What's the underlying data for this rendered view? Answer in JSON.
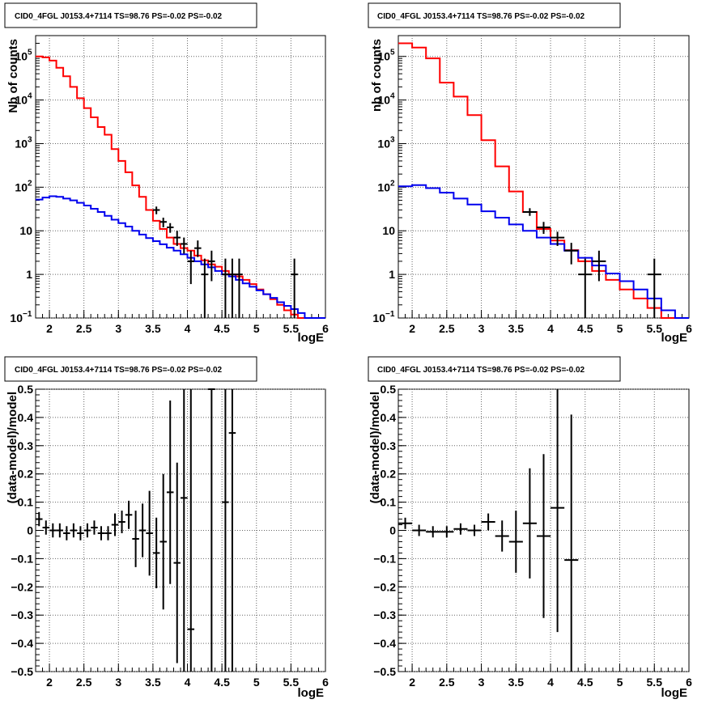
{
  "chart_data": [
    {
      "type": "line",
      "title": "CID0_4FGL J0153.4+7114 TS=98.76 PS=-0.02 PS=-0.02",
      "xlabel": "logE",
      "ylabel": "Nb of counts",
      "xlim": [
        1.8,
        6.0
      ],
      "ylim": [
        0.1,
        300000
      ],
      "yscale": "log",
      "grid": true,
      "x_ticks": [
        "2",
        "2.5",
        "3",
        "3.5",
        "4",
        "4.5",
        "5",
        "5.5",
        "6"
      ],
      "y_ticks": [
        {
          "v": 0.1,
          "b": "10",
          "e": "−1"
        },
        {
          "v": 1,
          "b": "1",
          "e": ""
        },
        {
          "v": 10,
          "b": "10",
          "e": ""
        },
        {
          "v": 100,
          "b": "10",
          "e": "2"
        },
        {
          "v": 1000,
          "b": "10",
          "e": "3"
        },
        {
          "v": 10000,
          "b": "10",
          "e": "4"
        },
        {
          "v": 100000,
          "b": "10",
          "e": "5"
        }
      ],
      "series": [
        {
          "color": "#ff0000",
          "bin_width": 0.1,
          "x": [
            1.8,
            1.9,
            2.0,
            2.1,
            2.2,
            2.3,
            2.4,
            2.5,
            2.6,
            2.7,
            2.8,
            2.9,
            3.0,
            3.1,
            3.2,
            3.3,
            3.4,
            3.5,
            3.6,
            3.7,
            3.8,
            3.9,
            4.0,
            4.1,
            4.2,
            4.3,
            4.4,
            4.5,
            4.6,
            4.7,
            4.8,
            4.9,
            5.0,
            5.1,
            5.2,
            5.3,
            5.4,
            5.5,
            5.6,
            5.7,
            5.8,
            5.9
          ],
          "y": [
            100000,
            95000,
            80000,
            55000,
            35000,
            20000,
            11000,
            6500,
            4000,
            2400,
            1600,
            750,
            400,
            220,
            110,
            60,
            30,
            17,
            11,
            7,
            5,
            4,
            3.5,
            2.7,
            2.1,
            1.7,
            1.5,
            1.2,
            1.0,
            0.9,
            0.75,
            0.6,
            0.45,
            0.35,
            0.27,
            0.2,
            0.15,
            0.12,
            0.1,
            0.1,
            0.1,
            0.1
          ]
        },
        {
          "color": "#0000ee",
          "bin_width": 0.1,
          "x": [
            1.8,
            1.9,
            2.0,
            2.1,
            2.2,
            2.3,
            2.4,
            2.5,
            2.6,
            2.7,
            2.8,
            2.9,
            3.0,
            3.1,
            3.2,
            3.3,
            3.4,
            3.5,
            3.6,
            3.7,
            3.8,
            3.9,
            4.0,
            4.1,
            4.2,
            4.3,
            4.4,
            4.5,
            4.6,
            4.7,
            4.8,
            4.9,
            5.0,
            5.1,
            5.2,
            5.3,
            5.4,
            5.5,
            5.6,
            5.7,
            5.8,
            5.9
          ],
          "y": [
            52,
            58,
            62,
            60,
            55,
            50,
            44,
            38,
            32,
            27,
            22,
            18,
            15,
            12.5,
            10,
            8.2,
            6.8,
            5.8,
            4.9,
            4.1,
            3.5,
            2.9,
            2.4,
            2.0,
            1.7,
            1.45,
            1.2,
            1.0,
            0.9,
            0.75,
            0.62,
            0.52,
            0.43,
            0.35,
            0.29,
            0.23,
            0.19,
            0.16,
            0.13,
            0.1,
            0.1,
            0.1
          ]
        }
      ],
      "points": [
        {
          "x": 3.55,
          "y": 30,
          "xerr": 0.05,
          "ylo": 24,
          "yhi": 36
        },
        {
          "x": 3.65,
          "y": 16,
          "xerr": 0.05,
          "ylo": 12,
          "yhi": 20
        },
        {
          "x": 3.75,
          "y": 12,
          "xerr": 0.05,
          "ylo": 9,
          "yhi": 15
        },
        {
          "x": 3.85,
          "y": 7,
          "xerr": 0.05,
          "ylo": 4.5,
          "yhi": 10
        },
        {
          "x": 3.95,
          "y": 5,
          "xerr": 0.05,
          "ylo": 3,
          "yhi": 7
        },
        {
          "x": 4.05,
          "y": 2,
          "xerr": 0.05,
          "ylo": 0.6,
          "yhi": 3.5
        },
        {
          "x": 4.15,
          "y": 4,
          "xerr": 0.05,
          "ylo": 2.5,
          "yhi": 6
        },
        {
          "x": 4.25,
          "y": 1,
          "xerr": 0.05,
          "ylo": 0.1,
          "yhi": 2.3
        },
        {
          "x": 4.35,
          "y": 2,
          "xerr": 0.05,
          "ylo": 0.7,
          "yhi": 3.5
        },
        {
          "x": 4.55,
          "y": 1,
          "xerr": 0.05,
          "ylo": 0.1,
          "yhi": 2.3
        },
        {
          "x": 4.65,
          "y": 1,
          "xerr": 0.05,
          "ylo": 0.1,
          "yhi": 2.3
        },
        {
          "x": 4.75,
          "y": 1,
          "xerr": 0.05,
          "ylo": 0.1,
          "yhi": 2.3
        },
        {
          "x": 5.55,
          "y": 1,
          "xerr": 0.05,
          "ylo": 0.1,
          "yhi": 2.3
        }
      ]
    },
    {
      "type": "line",
      "title": "CID0_4FGL J0153.4+7114 TS=98.76 PS=-0.02 PS=-0.02",
      "xlabel": "logE",
      "ylabel": "nb of counts",
      "xlim": [
        1.8,
        6.0
      ],
      "ylim": [
        0.1,
        300000
      ],
      "yscale": "log",
      "grid": true,
      "x_ticks": [
        "2",
        "2.5",
        "3",
        "3.5",
        "4",
        "4.5",
        "5",
        "5.5",
        "6"
      ],
      "y_ticks": [
        {
          "v": 0.1,
          "b": "10",
          "e": "−1"
        },
        {
          "v": 1,
          "b": "1",
          "e": ""
        },
        {
          "v": 10,
          "b": "10",
          "e": ""
        },
        {
          "v": 100,
          "b": "10",
          "e": "2"
        },
        {
          "v": 1000,
          "b": "10",
          "e": "3"
        },
        {
          "v": 10000,
          "b": "10",
          "e": "4"
        },
        {
          "v": 100000,
          "b": "10",
          "e": "5"
        }
      ],
      "series": [
        {
          "color": "#ff0000",
          "bin_width": 0.2,
          "x": [
            1.8,
            2.0,
            2.2,
            2.4,
            2.6,
            2.8,
            3.0,
            3.2,
            3.4,
            3.6,
            3.8,
            4.0,
            4.2,
            4.4,
            4.6,
            4.8,
            5.0,
            5.2,
            5.4,
            5.6,
            5.8
          ],
          "y": [
            200000,
            160000,
            90000,
            25000,
            12000,
            4500,
            1200,
            300,
            80,
            27,
            11,
            6,
            3.6,
            2.0,
            1.2,
            0.75,
            0.45,
            0.28,
            0.17,
            0.1,
            0.1
          ]
        },
        {
          "color": "#0000ee",
          "bin_width": 0.2,
          "x": [
            1.8,
            2.0,
            2.2,
            2.4,
            2.6,
            2.8,
            3.0,
            3.2,
            3.4,
            3.6,
            3.8,
            4.0,
            4.2,
            4.4,
            4.6,
            4.8,
            5.0,
            5.2,
            5.4,
            5.6,
            5.8
          ],
          "y": [
            105,
            112,
            95,
            75,
            55,
            40,
            28,
            20,
            14,
            10,
            7,
            5,
            3.5,
            2.4,
            1.6,
            1.05,
            0.7,
            0.45,
            0.28,
            0.15,
            0.1
          ]
        }
      ],
      "points": [
        {
          "x": 3.7,
          "y": 27,
          "xerr": 0.1,
          "ylo": 22,
          "yhi": 33
        },
        {
          "x": 3.9,
          "y": 12,
          "xerr": 0.1,
          "ylo": 8.5,
          "yhi": 16
        },
        {
          "x": 4.1,
          "y": 7,
          "xerr": 0.1,
          "ylo": 4.5,
          "yhi": 9.5
        },
        {
          "x": 4.3,
          "y": 3.5,
          "xerr": 0.1,
          "ylo": 1.7,
          "yhi": 5.3
        },
        {
          "x": 4.5,
          "y": 1,
          "xerr": 0.1,
          "ylo": 0.1,
          "yhi": 2.3
        },
        {
          "x": 4.7,
          "y": 2,
          "xerr": 0.1,
          "ylo": 0.7,
          "yhi": 3.5
        },
        {
          "x": 5.5,
          "y": 1,
          "xerr": 0.1,
          "ylo": 0.1,
          "yhi": 2.3
        }
      ]
    },
    {
      "type": "scatter",
      "title": "CID0_4FGL J0153.4+7114 TS=98.76 PS=-0.02 PS=-0.02",
      "xlabel": "logE",
      "ylabel": "(data-model)/model",
      "xlim": [
        1.8,
        6.0
      ],
      "ylim": [
        -0.5,
        0.5
      ],
      "grid": true,
      "x_ticks": [
        "2",
        "2.5",
        "3",
        "3.5",
        "4",
        "4.5",
        "5",
        "5.5",
        "6"
      ],
      "y_ticks": [
        "0.5",
        "0.4",
        "0.3",
        "0.2",
        "0.1",
        "0",
        "−0.1",
        "−0.2",
        "−0.3",
        "−0.4",
        "−0.5"
      ],
      "points": [
        {
          "x": 1.85,
          "y": 0.04,
          "xerr": 0.05,
          "yerr": 0.025
        },
        {
          "x": 1.95,
          "y": 0.01,
          "xerr": 0.05,
          "yerr": 0.025
        },
        {
          "x": 2.05,
          "y": 0.0,
          "xerr": 0.05,
          "yerr": 0.025
        },
        {
          "x": 2.15,
          "y": 0.0,
          "xerr": 0.05,
          "yerr": 0.025
        },
        {
          "x": 2.25,
          "y": -0.01,
          "xerr": 0.05,
          "yerr": 0.025
        },
        {
          "x": 2.35,
          "y": 0.0,
          "xerr": 0.05,
          "yerr": 0.025
        },
        {
          "x": 2.45,
          "y": -0.01,
          "xerr": 0.05,
          "yerr": 0.025
        },
        {
          "x": 2.55,
          "y": 0.0,
          "xerr": 0.05,
          "yerr": 0.025
        },
        {
          "x": 2.65,
          "y": 0.01,
          "xerr": 0.05,
          "yerr": 0.025
        },
        {
          "x": 2.75,
          "y": -0.01,
          "xerr": 0.05,
          "yerr": 0.025
        },
        {
          "x": 2.85,
          "y": -0.01,
          "xerr": 0.05,
          "yerr": 0.025
        },
        {
          "x": 2.95,
          "y": 0.02,
          "xerr": 0.05,
          "yerr": 0.04
        },
        {
          "x": 3.05,
          "y": 0.03,
          "xerr": 0.05,
          "yerr": 0.04
        },
        {
          "x": 3.15,
          "y": 0.055,
          "xerr": 0.05,
          "yerr": 0.05
        },
        {
          "x": 3.25,
          "y": -0.03,
          "xerr": 0.05,
          "yerr": 0.1
        },
        {
          "x": 3.35,
          "y": 0.0,
          "xerr": 0.05,
          "yerr": 0.095
        },
        {
          "x": 3.45,
          "y": -0.01,
          "xerr": 0.05,
          "yerr": 0.15
        },
        {
          "x": 3.55,
          "y": -0.08,
          "xerr": 0.05,
          "yerr": 0.125
        },
        {
          "x": 3.65,
          "y": -0.04,
          "xerr": 0.05,
          "yerr": 0.24
        },
        {
          "x": 3.75,
          "y": 0.135,
          "xerr": 0.05,
          "yerr": 0.325
        },
        {
          "x": 3.85,
          "y": -0.115,
          "xerr": 0.05,
          "yerr": 0.355
        },
        {
          "x": 3.95,
          "y": 0.115,
          "xerr": 0.05,
          "yerr": 0.7
        },
        {
          "x": 4.05,
          "y": -0.35,
          "xerr": 0.05,
          "yerr": 0.85
        },
        {
          "x": 4.35,
          "y": 0.5,
          "xerr": 0.05,
          "yerr": 1.0
        },
        {
          "x": 4.55,
          "y": 0.1,
          "xerr": 0.05,
          "yerr": 1.0
        },
        {
          "x": 4.65,
          "y": 0.345,
          "xerr": 0.05,
          "yerr": 1.0
        }
      ]
    },
    {
      "type": "scatter",
      "title": "CID0_4FGL J0153.4+7114 TS=98.76 PS=-0.02 PS=-0.02",
      "xlabel": "logE",
      "ylabel": "(data-model)/model",
      "xlim": [
        1.8,
        6.0
      ],
      "ylim": [
        -0.5,
        0.5
      ],
      "grid": true,
      "x_ticks": [
        "2",
        "2.5",
        "3",
        "3.5",
        "4",
        "4.5",
        "5",
        "5.5",
        "6"
      ],
      "y_ticks": [
        "0.5",
        "0.4",
        "0.3",
        "0.2",
        "0.1",
        "0",
        "−0.1",
        "−0.2",
        "−0.3",
        "−0.4",
        "−0.5"
      ],
      "points": [
        {
          "x": 1.9,
          "y": 0.025,
          "xerr": 0.1,
          "yerr": 0.02
        },
        {
          "x": 2.1,
          "y": 0.0,
          "xerr": 0.1,
          "yerr": 0.02
        },
        {
          "x": 2.3,
          "y": -0.005,
          "xerr": 0.1,
          "yerr": 0.02
        },
        {
          "x": 2.5,
          "y": -0.005,
          "xerr": 0.1,
          "yerr": 0.02
        },
        {
          "x": 2.7,
          "y": 0.005,
          "xerr": 0.1,
          "yerr": 0.02
        },
        {
          "x": 2.9,
          "y": 0.0,
          "xerr": 0.1,
          "yerr": 0.02
        },
        {
          "x": 3.1,
          "y": 0.03,
          "xerr": 0.1,
          "yerr": 0.03
        },
        {
          "x": 3.3,
          "y": -0.02,
          "xerr": 0.1,
          "yerr": 0.055
        },
        {
          "x": 3.5,
          "y": -0.04,
          "xerr": 0.1,
          "yerr": 0.11
        },
        {
          "x": 3.7,
          "y": 0.025,
          "xerr": 0.1,
          "yerr": 0.195
        },
        {
          "x": 3.9,
          "y": -0.02,
          "xerr": 0.1,
          "yerr": 0.29
        },
        {
          "x": 4.1,
          "y": 0.08,
          "xerr": 0.1,
          "yerr": 0.44
        },
        {
          "x": 4.3,
          "y": -0.105,
          "xerr": 0.1,
          "yerr": 0.515
        }
      ]
    }
  ]
}
